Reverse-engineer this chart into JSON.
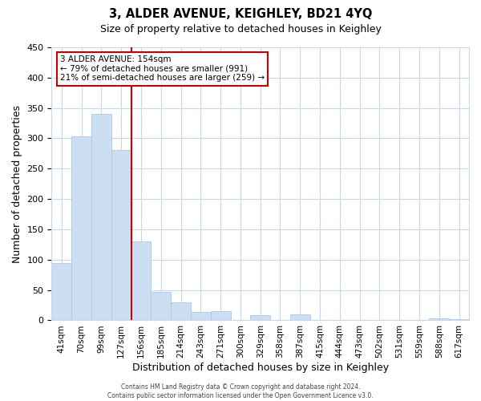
{
  "title": "3, ALDER AVENUE, KEIGHLEY, BD21 4YQ",
  "subtitle": "Size of property relative to detached houses in Keighley",
  "xlabel": "Distribution of detached houses by size in Keighley",
  "ylabel": "Number of detached properties",
  "bar_labels": [
    "41sqm",
    "70sqm",
    "99sqm",
    "127sqm",
    "156sqm",
    "185sqm",
    "214sqm",
    "243sqm",
    "271sqm",
    "300sqm",
    "329sqm",
    "358sqm",
    "387sqm",
    "415sqm",
    "444sqm",
    "473sqm",
    "502sqm",
    "531sqm",
    "559sqm",
    "588sqm",
    "617sqm"
  ],
  "bar_heights": [
    95,
    303,
    340,
    281,
    130,
    47,
    30,
    14,
    15,
    0,
    8,
    0,
    10,
    0,
    0,
    0,
    0,
    0,
    0,
    3,
    2
  ],
  "bar_color": "#ccdff2",
  "bar_edge_color": "#a8c8e8",
  "vline_color": "#cc0000",
  "ylim": [
    0,
    450
  ],
  "yticks": [
    0,
    50,
    100,
    150,
    200,
    250,
    300,
    350,
    400,
    450
  ],
  "annotation_title": "3 ALDER AVENUE: 154sqm",
  "annotation_line1": "← 79% of detached houses are smaller (991)",
  "annotation_line2": "21% of semi-detached houses are larger (259) →",
  "footer_line1": "Contains HM Land Registry data © Crown copyright and database right 2024.",
  "footer_line2": "Contains public sector information licensed under the Open Government Licence v3.0.",
  "background_color": "#ffffff",
  "grid_color": "#c8d8ea"
}
